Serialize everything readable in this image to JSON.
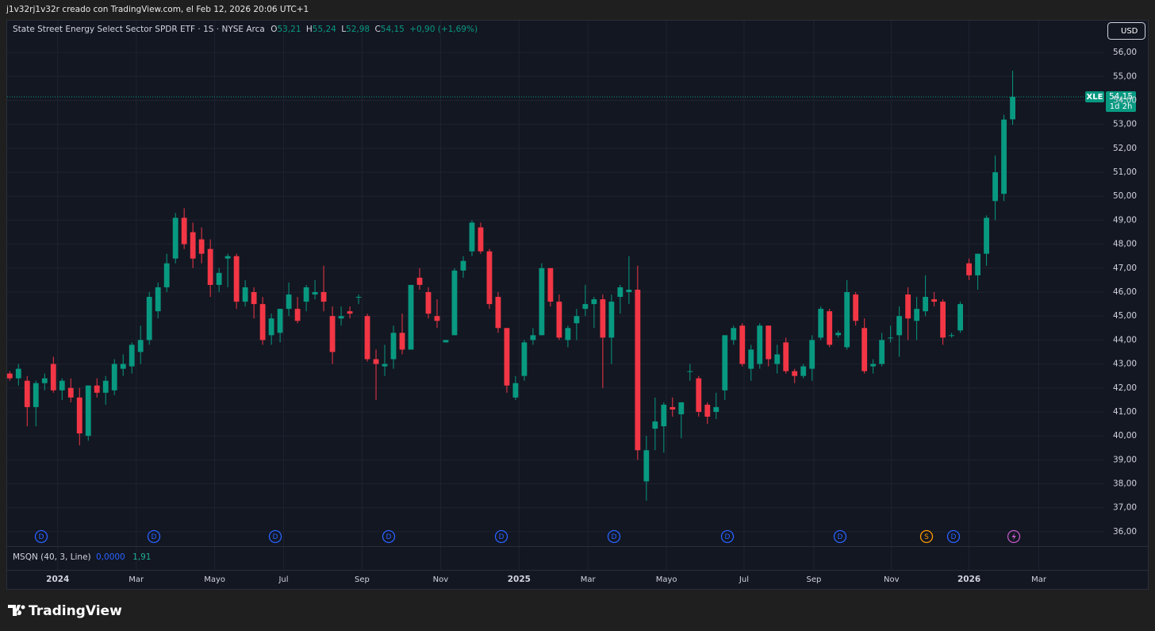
{
  "header": "j1v32rj1v32r creado con TradingView.com, el Feb 12, 2026 20:06 UTC+1",
  "legend": {
    "symbol": "State Street Energy Select Sector SPDR ETF · 1S · NYSE Arca",
    "o": "O",
    "o_value": "53,21",
    "h": "H",
    "h_value": "55,24",
    "l": "L",
    "l_value": "52,98",
    "c": "C",
    "c_value": "54,15",
    "change": "+0,90 (+1,69%)"
  },
  "currency": "USD",
  "price_tag": {
    "ticker": "XLE",
    "price": "54,15",
    "countdown": "1d 2h"
  },
  "indicator": {
    "name": "MSQN (40, 3, Line)",
    "value1": "0,0000",
    "value2": "1,91"
  },
  "events": [
    "D",
    "D",
    "D",
    "D",
    "D",
    "D",
    "D",
    "D",
    "S",
    "D"
  ],
  "brand": "TradingView",
  "chart_data": {
    "type": "candlestick",
    "up_color": "#089981",
    "down_color": "#f23645",
    "grid": true,
    "open": [
      42.6,
      42.4,
      42.3,
      41.2,
      42.2,
      43.0,
      41.9,
      42.0,
      41.6,
      40.0,
      42.1,
      41.8,
      41.9,
      42.8,
      42.9,
      43.5,
      44.0,
      45.2,
      46.2,
      47.4,
      49.1,
      48.5,
      48.2,
      47.8,
      46.3,
      47.4,
      47.5,
      45.6,
      46.0,
      45.5,
      44.2,
      44.3,
      45.3,
      45.3,
      45.6,
      45.9,
      46.0,
      45.0,
      44.9,
      45.2,
      45.8,
      45.0,
      43.2,
      42.9,
      43.2,
      44.3,
      43.6,
      46.6,
      46.0,
      45.0,
      43.9,
      44.2,
      46.9,
      47.7,
      48.7,
      47.7,
      45.8,
      44.5,
      41.6,
      42.5,
      44.0,
      44.2,
      47.0,
      45.6,
      44.0,
      44.7,
      45.3,
      45.5,
      45.7,
      44.1,
      45.8,
      46.0,
      46.1,
      38.1,
      40.3,
      40.4,
      41.2,
      40.9,
      42.7,
      42.4,
      41.3,
      41.0,
      41.9,
      44.0,
      44.6,
      42.8,
      43.0,
      44.6,
      43.0,
      43.9,
      42.7,
      42.5,
      42.8,
      44.1,
      45.2,
      44.2,
      43.7,
      45.9,
      44.5,
      42.9,
      43.0,
      44.1,
      44.2,
      45.9,
      44.8,
      45.2,
      45.7,
      45.6,
      44.2,
      44.4,
      47.2,
      46.7,
      47.6,
      49.8,
      50.1,
      53.21
    ],
    "high": [
      42.7,
      43.0,
      42.5,
      42.3,
      42.6,
      43.3,
      42.4,
      42.4,
      42.0,
      42.1,
      42.4,
      42.5,
      43.2,
      43.4,
      43.9,
      44.6,
      46.0,
      46.4,
      47.6,
      49.3,
      49.5,
      48.9,
      48.7,
      48.2,
      47.0,
      47.6,
      47.6,
      46.5,
      46.2,
      45.8,
      45.1,
      45.3,
      46.4,
      45.8,
      46.3,
      46.5,
      47.1,
      45.4,
      45.4,
      45.4,
      45.9,
      45.1,
      43.6,
      43.8,
      44.6,
      45.1,
      46.3,
      47.0,
      46.2,
      45.7,
      44.0,
      47.0,
      47.5,
      49.0,
      48.9,
      47.8,
      46.0,
      44.5,
      42.5,
      44.0,
      44.5,
      47.2,
      47.0,
      45.9,
      44.6,
      45.3,
      46.3,
      45.8,
      45.9,
      45.9,
      46.3,
      47.5,
      47.1,
      40.0,
      41.6,
      41.4,
      41.6,
      41.4,
      43.0,
      42.5,
      41.4,
      41.8,
      44.2,
      44.6,
      44.7,
      43.8,
      44.7,
      44.6,
      43.8,
      44.1,
      42.8,
      43.0,
      44.2,
      45.4,
      45.3,
      44.4,
      46.5,
      46.0,
      44.9,
      43.2,
      44.3,
      44.6,
      45.4,
      46.2,
      45.8,
      46.7,
      46.0,
      45.7,
      44.3,
      45.6,
      47.4,
      47.6,
      49.2,
      51.7,
      53.4,
      55.24
    ],
    "low": [
      42.3,
      42.1,
      40.4,
      40.4,
      41.9,
      41.8,
      41.5,
      41.4,
      39.6,
      39.8,
      41.6,
      41.3,
      41.7,
      42.5,
      42.6,
      43.0,
      43.8,
      44.9,
      46.0,
      47.2,
      47.8,
      47.0,
      47.2,
      45.8,
      46.0,
      46.2,
      45.3,
      45.4,
      44.9,
      43.8,
      43.8,
      43.9,
      45.0,
      44.7,
      45.2,
      45.7,
      45.2,
      43.0,
      44.6,
      44.9,
      45.5,
      43.1,
      41.5,
      42.5,
      42.8,
      43.4,
      43.6,
      46.1,
      44.9,
      44.5,
      43.9,
      44.2,
      46.6,
      47.5,
      47.6,
      45.3,
      44.3,
      41.8,
      41.5,
      42.3,
      43.8,
      44.2,
      45.4,
      44.0,
      43.7,
      44.0,
      45.0,
      44.5,
      42.0,
      43.0,
      45.1,
      45.5,
      39.0,
      37.3,
      39.4,
      39.3,
      40.8,
      39.9,
      42.3,
      40.8,
      40.5,
      40.7,
      41.5,
      43.8,
      42.9,
      42.3,
      42.8,
      42.9,
      42.6,
      42.6,
      42.2,
      42.4,
      42.3,
      44.0,
      43.7,
      44.1,
      43.6,
      44.6,
      42.6,
      42.6,
      42.9,
      43.9,
      43.3,
      44.0,
      44.0,
      45.0,
      45.4,
      43.8,
      44.1,
      44.3,
      46.5,
      46.1,
      47.1,
      49.0,
      49.8,
      52.98
    ],
    "close": [
      42.4,
      42.8,
      41.2,
      42.2,
      42.4,
      41.9,
      42.3,
      41.6,
      40.1,
      42.1,
      41.8,
      42.3,
      43.0,
      43.0,
      43.8,
      44.0,
      45.8,
      46.2,
      47.2,
      49.1,
      48.0,
      47.4,
      47.6,
      46.3,
      46.8,
      47.5,
      45.6,
      46.2,
      45.5,
      44.0,
      44.9,
      45.3,
      45.9,
      44.8,
      46.2,
      46.0,
      45.6,
      43.5,
      45.0,
      45.1,
      45.8,
      43.2,
      43.0,
      43.0,
      44.3,
      43.6,
      46.3,
      46.3,
      45.1,
      44.8,
      44.0,
      46.9,
      47.3,
      48.9,
      47.7,
      45.5,
      44.5,
      42.1,
      42.2,
      43.9,
      44.2,
      47.0,
      45.6,
      44.1,
      44.5,
      45.0,
      45.5,
      45.7,
      44.1,
      45.6,
      46.2,
      46.1,
      39.4,
      39.4,
      40.6,
      41.3,
      41.1,
      41.4,
      42.7,
      41.0,
      40.8,
      41.2,
      44.2,
      44.5,
      43.0,
      43.6,
      44.6,
      43.2,
      43.4,
      42.7,
      42.5,
      42.9,
      44.0,
      45.3,
      43.8,
      44.3,
      46.0,
      44.8,
      42.7,
      43.0,
      44.0,
      44.1,
      45.0,
      44.9,
      45.3,
      45.8,
      45.6,
      44.1,
      44.2,
      45.5,
      46.7,
      47.6,
      49.1,
      51.0,
      53.2,
      54.15
    ],
    "xlim": [
      -0.3,
      125.5
    ],
    "xticks": [
      {
        "value": 5.5,
        "label": "2024"
      },
      {
        "value": 14.5,
        "label": "Mar"
      },
      {
        "value": 23.5,
        "label": "Mayo"
      },
      {
        "value": 31.4,
        "label": "Jul"
      },
      {
        "value": 40.4,
        "label": "Sep"
      },
      {
        "value": 49.4,
        "label": "Nov"
      },
      {
        "value": 58.4,
        "label": "2025"
      },
      {
        "value": 66.3,
        "label": "Mar"
      },
      {
        "value": 75.3,
        "label": "Mayo"
      },
      {
        "value": 84.2,
        "label": "Jul"
      },
      {
        "value": 92.2,
        "label": "Sep"
      },
      {
        "value": 101.1,
        "label": "Nov"
      },
      {
        "value": 110,
        "label": "2026"
      },
      {
        "value": 118,
        "label": "Mar"
      }
    ],
    "ylim": [
      35.4,
      56.6
    ],
    "yticks": [
      {
        "value": 36,
        "label": "36,00"
      },
      {
        "value": 37,
        "label": "37,00"
      },
      {
        "value": 38,
        "label": "38,00"
      },
      {
        "value": 39,
        "label": "39,00"
      },
      {
        "value": 40,
        "label": "40,00"
      },
      {
        "value": 41,
        "label": "41,00"
      },
      {
        "value": 42,
        "label": "42,00"
      },
      {
        "value": 43,
        "label": "43,00"
      },
      {
        "value": 44,
        "label": "44,00"
      },
      {
        "value": 45,
        "label": "45,00"
      },
      {
        "value": 46,
        "label": "46,00"
      },
      {
        "value": 47,
        "label": "47,00"
      },
      {
        "value": 48,
        "label": "48,00"
      },
      {
        "value": 49,
        "label": "49,00"
      },
      {
        "value": 50,
        "label": "50,00"
      },
      {
        "value": 51,
        "label": "51,00"
      },
      {
        "value": 52,
        "label": "52,00"
      },
      {
        "value": 53,
        "label": "53,00"
      },
      {
        "value": 54,
        "label": "54,00"
      },
      {
        "value": 55,
        "label": "55,00"
      },
      {
        "value": 56,
        "label": "56,00"
      }
    ]
  }
}
